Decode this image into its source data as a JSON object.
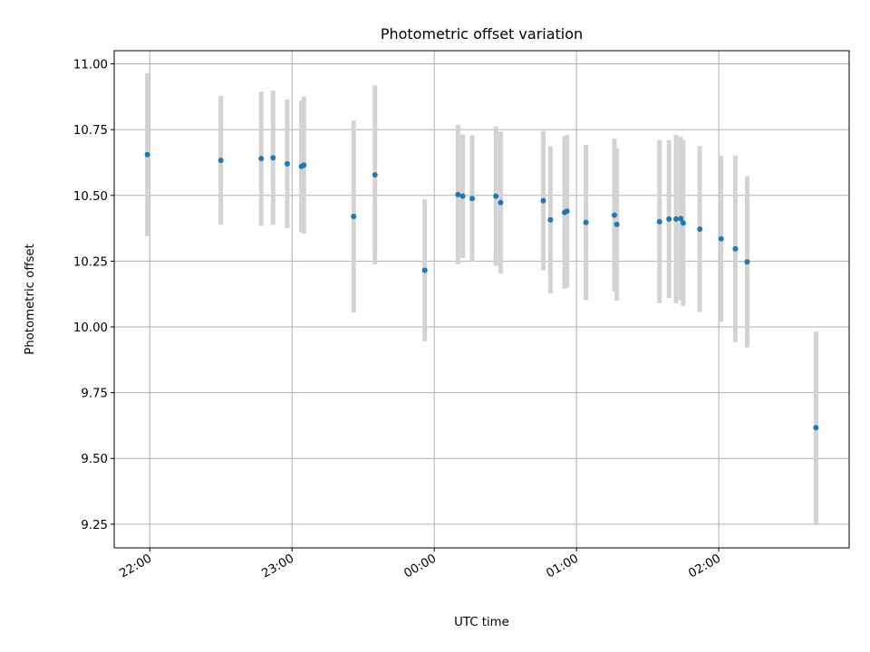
{
  "chart_data": {
    "type": "scatter",
    "title": "Photometric offset variation",
    "xlabel": "UTC time",
    "ylabel": "Photometric offset",
    "x_axis_kind": "time",
    "x_tick_labels": [
      "22:00",
      "23:00",
      "00:00",
      "01:00",
      "02:00"
    ],
    "x_tick_times": [
      "22:00",
      "23:00",
      "24:00",
      "25:00",
      "26:00"
    ],
    "xlim": [
      "21:45",
      "26:55"
    ],
    "ylim": [
      9.16,
      11.05
    ],
    "y_ticks": [
      9.25,
      9.5,
      9.75,
      10.0,
      10.25,
      10.5,
      10.75,
      11.0
    ],
    "y_tick_labels": [
      "9.25",
      "9.50",
      "9.75",
      "10.00",
      "10.25",
      "10.50",
      "10.75",
      "11.00"
    ],
    "grid": true,
    "colors": {
      "points": "#1f77b4",
      "error_bars": "#d3d3d3",
      "grid": "#b0b0b0"
    },
    "points": [
      {
        "t": "21:59",
        "y": 10.655,
        "err": 0.31
      },
      {
        "t": "22:30",
        "y": 10.633,
        "err": 0.245
      },
      {
        "t": "22:47",
        "y": 10.64,
        "err": 0.255
      },
      {
        "t": "22:52",
        "y": 10.643,
        "err": 0.255
      },
      {
        "t": "22:58",
        "y": 10.62,
        "err": 0.245
      },
      {
        "t": "23:04",
        "y": 10.61,
        "err": 0.25
      },
      {
        "t": "23:05",
        "y": 10.615,
        "err": 0.26
      },
      {
        "t": "23:26",
        "y": 10.42,
        "err": 0.365
      },
      {
        "t": "23:35",
        "y": 10.578,
        "err": 0.34
      },
      {
        "t": "23:56",
        "y": 10.215,
        "err": 0.27
      },
      {
        "t": "24:10",
        "y": 10.503,
        "err": 0.265
      },
      {
        "t": "24:12",
        "y": 10.497,
        "err": 0.235
      },
      {
        "t": "24:16",
        "y": 10.488,
        "err": 0.24
      },
      {
        "t": "24:26",
        "y": 10.497,
        "err": 0.265
      },
      {
        "t": "24:28",
        "y": 10.473,
        "err": 0.27
      },
      {
        "t": "24:46",
        "y": 10.48,
        "err": 0.265
      },
      {
        "t": "24:49",
        "y": 10.407,
        "err": 0.28
      },
      {
        "t": "24:55",
        "y": 10.435,
        "err": 0.29
      },
      {
        "t": "24:56",
        "y": 10.44,
        "err": 0.29
      },
      {
        "t": "25:04",
        "y": 10.397,
        "err": 0.295
      },
      {
        "t": "25:16",
        "y": 10.425,
        "err": 0.29
      },
      {
        "t": "25:17",
        "y": 10.39,
        "err": 0.29
      },
      {
        "t": "25:35",
        "y": 10.4,
        "err": 0.31
      },
      {
        "t": "25:39",
        "y": 10.41,
        "err": 0.3
      },
      {
        "t": "25:42",
        "y": 10.41,
        "err": 0.32
      },
      {
        "t": "25:44",
        "y": 10.412,
        "err": 0.31
      },
      {
        "t": "25:45",
        "y": 10.395,
        "err": 0.315
      },
      {
        "t": "25:52",
        "y": 10.372,
        "err": 0.315
      },
      {
        "t": "26:01",
        "y": 10.335,
        "err": 0.315
      },
      {
        "t": "26:07",
        "y": 10.297,
        "err": 0.355
      },
      {
        "t": "26:12",
        "y": 10.247,
        "err": 0.325
      },
      {
        "t": "26:41",
        "y": 9.617,
        "err": 0.365
      }
    ]
  }
}
